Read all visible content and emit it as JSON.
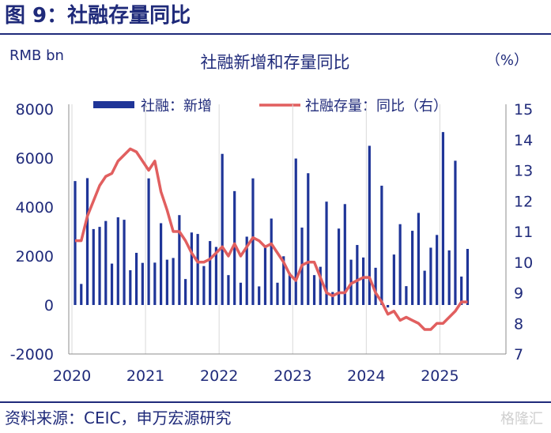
{
  "figure": {
    "title": "图 9：社融存量同比",
    "source": "资料来源：CEIC，申万宏源研究",
    "watermark": "格隆汇"
  },
  "colors": {
    "brand": "#1f2a7a",
    "bar": "#1f3598",
    "line": "#e15f5f",
    "grid": "#d9d9d9"
  },
  "chart_data": {
    "type": "bar",
    "title": "社融新增和存量同比",
    "left_unit_label": "RMB bn",
    "right_unit_label": "（%）",
    "x_tick_labels": [
      "2020",
      "2021",
      "2022",
      "2023",
      "2024",
      "2025"
    ],
    "ylim_left": [
      -2000,
      8000
    ],
    "yticks_left": [
      "8000",
      "6000",
      "4000",
      "2000",
      "0",
      "-2000"
    ],
    "ylim_right": [
      7,
      15
    ],
    "yticks_right": [
      "15",
      "14",
      "13",
      "12",
      "11",
      "10",
      "9",
      "8",
      "7"
    ],
    "grid": "vertical",
    "legend_position": "top",
    "series": [
      {
        "name": "社融：新增",
        "type": "bar",
        "axis": "left",
        "x": [
          "2020-01",
          "2020-02",
          "2020-03",
          "2020-04",
          "2020-05",
          "2020-06",
          "2020-07",
          "2020-08",
          "2020-09",
          "2020-10",
          "2020-11",
          "2020-12",
          "2021-01",
          "2021-02",
          "2021-03",
          "2021-04",
          "2021-05",
          "2021-06",
          "2021-07",
          "2021-08",
          "2021-09",
          "2021-10",
          "2021-11",
          "2021-12",
          "2022-01",
          "2022-02",
          "2022-03",
          "2022-04",
          "2022-05",
          "2022-06",
          "2022-07",
          "2022-08",
          "2022-09",
          "2022-10",
          "2022-11",
          "2022-12",
          "2023-01",
          "2023-02",
          "2023-03",
          "2023-04",
          "2023-05",
          "2023-06",
          "2023-07",
          "2023-08",
          "2023-09",
          "2023-10",
          "2023-11",
          "2023-12",
          "2024-01",
          "2024-02",
          "2024-03",
          "2024-04",
          "2024-05",
          "2024-06",
          "2024-07",
          "2024-08",
          "2024-09",
          "2024-10",
          "2024-11",
          "2024-12",
          "2025-01",
          "2025-02",
          "2025-03",
          "2025-04",
          "2025-05"
        ],
        "values": [
          5060,
          860,
          5180,
          3100,
          3190,
          3430,
          1690,
          3580,
          3480,
          1420,
          2130,
          1720,
          5170,
          1730,
          3340,
          1850,
          1920,
          3670,
          1060,
          2960,
          2900,
          1590,
          2610,
          2370,
          6170,
          1220,
          4650,
          910,
          2790,
          5170,
          760,
          2430,
          3530,
          910,
          1990,
          1310,
          5980,
          3160,
          5380,
          1220,
          1560,
          4220,
          530,
          3120,
          4120,
          1850,
          2450,
          1940,
          6500,
          1520,
          4870,
          -100,
          2060,
          3300,
          770,
          3030,
          3760,
          1400,
          2340,
          2860,
          7060,
          2230,
          5890,
          1160,
          2290
        ]
      },
      {
        "name": "社融存量：同比（右）",
        "type": "line",
        "axis": "right",
        "x": [
          "2020-01",
          "2020-02",
          "2020-03",
          "2020-04",
          "2020-05",
          "2020-06",
          "2020-07",
          "2020-08",
          "2020-09",
          "2020-10",
          "2020-11",
          "2020-12",
          "2021-01",
          "2021-02",
          "2021-03",
          "2021-04",
          "2021-05",
          "2021-06",
          "2021-07",
          "2021-08",
          "2021-09",
          "2021-10",
          "2021-11",
          "2021-12",
          "2022-01",
          "2022-02",
          "2022-03",
          "2022-04",
          "2022-05",
          "2022-06",
          "2022-07",
          "2022-08",
          "2022-09",
          "2022-10",
          "2022-11",
          "2022-12",
          "2023-01",
          "2023-02",
          "2023-03",
          "2023-04",
          "2023-05",
          "2023-06",
          "2023-07",
          "2023-08",
          "2023-09",
          "2023-10",
          "2023-11",
          "2023-12",
          "2024-01",
          "2024-02",
          "2024-03",
          "2024-04",
          "2024-05",
          "2024-06",
          "2024-07",
          "2024-08",
          "2024-09",
          "2024-10",
          "2024-11",
          "2024-12",
          "2025-01",
          "2025-02",
          "2025-03",
          "2025-04",
          "2025-05"
        ],
        "values": [
          10.7,
          10.7,
          11.5,
          12.0,
          12.5,
          12.8,
          12.9,
          13.3,
          13.5,
          13.7,
          13.6,
          13.3,
          13.0,
          13.3,
          12.3,
          11.7,
          11.0,
          11.0,
          10.7,
          10.3,
          10.0,
          10.0,
          10.1,
          10.3,
          10.5,
          10.2,
          10.6,
          10.2,
          10.5,
          10.8,
          10.7,
          10.5,
          10.6,
          10.3,
          10.0,
          9.6,
          9.4,
          9.9,
          10.0,
          10.0,
          9.5,
          9.0,
          8.9,
          9.0,
          9.0,
          9.3,
          9.4,
          9.5,
          9.5,
          9.0,
          8.7,
          8.3,
          8.4,
          8.1,
          8.2,
          8.1,
          8.0,
          7.8,
          7.8,
          8.0,
          8.0,
          8.2,
          8.4,
          8.7,
          8.7
        ]
      }
    ]
  }
}
